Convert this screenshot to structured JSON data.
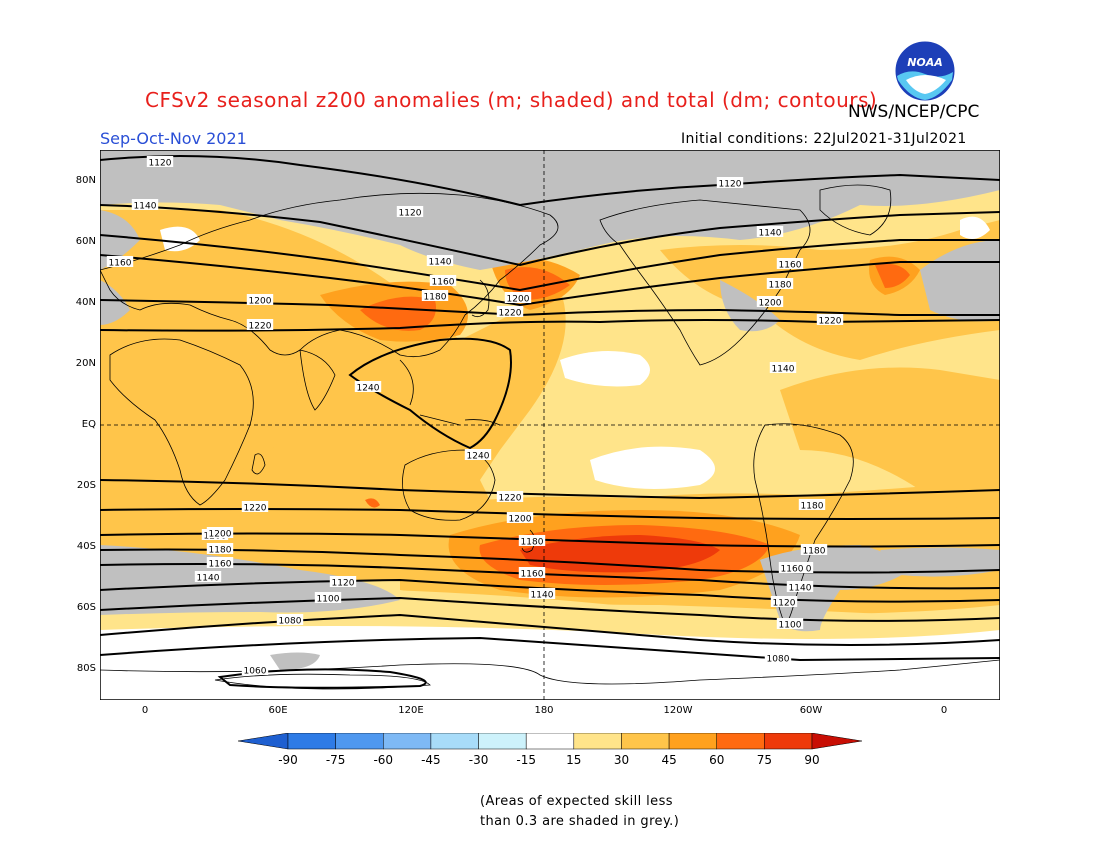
{
  "title": "CFSv2 seasonal z200 anomalies (m; shaded) and total (dm; contours)",
  "organization": "NWS/NCEP/CPC",
  "logo_text": "NOAA",
  "season": "Sep-Oct-Nov 2021",
  "initial_conditions": "Initial conditions: 22Jul2021-31Jul2021",
  "lat_labels": [
    "80N",
    "60N",
    "40N",
    "20N",
    "EQ",
    "20S",
    "40S",
    "60S",
    "80S"
  ],
  "lon_labels": [
    "0",
    "60E",
    "120E",
    "180",
    "120W",
    "60W",
    "0"
  ],
  "colorbar": {
    "ticks": [
      "-90",
      "-75",
      "-60",
      "-45",
      "-30",
      "-15",
      "15",
      "30",
      "45",
      "60",
      "75",
      "90"
    ],
    "colors": [
      "#1e5fd0",
      "#2e7be6",
      "#4f98ef",
      "#7eb9f5",
      "#a8dcf9",
      "#cdf2fb",
      "#ffffff",
      "#ffe48a",
      "#ffc54a",
      "#ffa11e",
      "#ff6a10",
      "#ee3a0a",
      "#c80e04"
    ]
  },
  "skill_note": [
    "(Areas of expected skill less",
    "than 0.3 are shaded in grey.)"
  ],
  "contour_labels": [
    "1120",
    "1120",
    "1120",
    "1140",
    "1140",
    "1140",
    "1140",
    "1160",
    "1160",
    "1160",
    "1160",
    "1180",
    "1180",
    "1180",
    "1180",
    "1200",
    "1200",
    "1200",
    "1200",
    "1220",
    "1220",
    "1220",
    "1240",
    "1240",
    "1220",
    "1220",
    "1200",
    "1200",
    "1180",
    "1180",
    "1160",
    "1160",
    "1160",
    "1140",
    "1140",
    "1140",
    "1120",
    "1120",
    "1100",
    "1100",
    "1080",
    "1080",
    "1060"
  ]
}
